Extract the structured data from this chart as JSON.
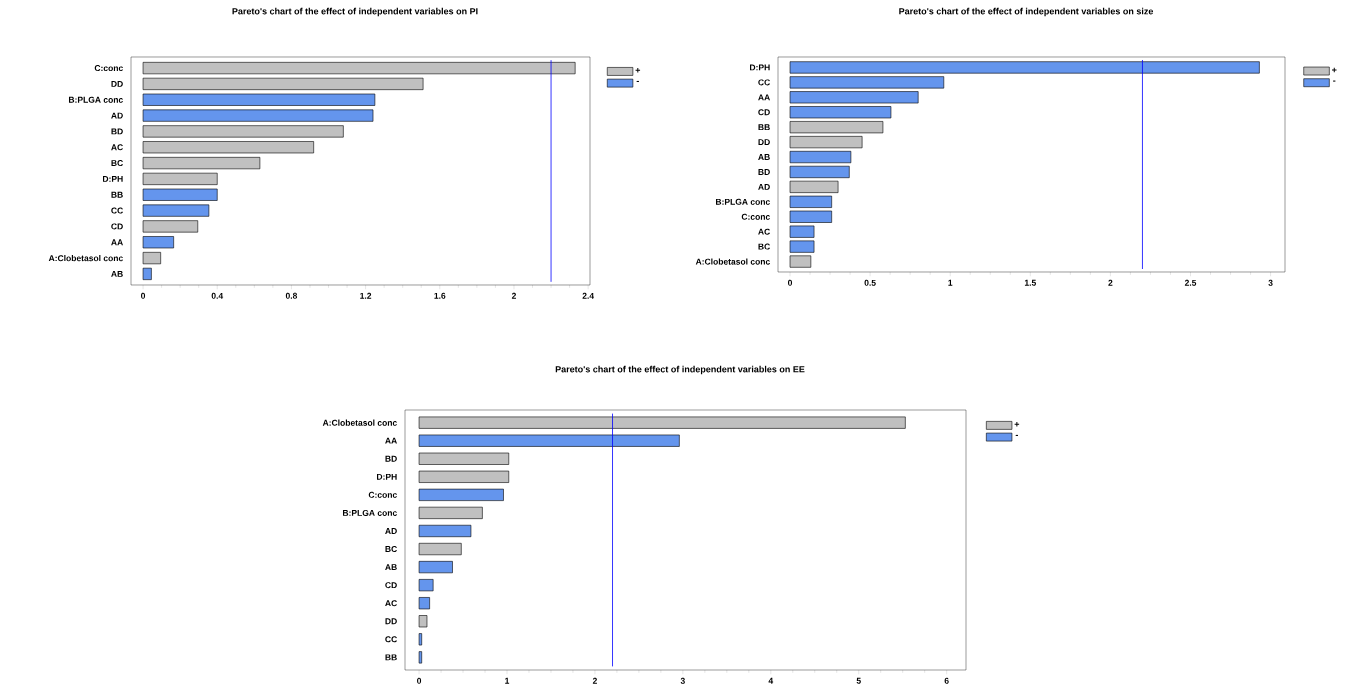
{
  "chart_data": [
    {
      "type": "bar",
      "orientation": "horizontal",
      "title": "Pareto's chart of the effect of independent variables on PI",
      "categories": [
        "C:conc",
        "DD",
        "B:PLGA conc",
        "AD",
        "BD",
        "AC",
        "BC",
        "D:PH",
        "BB",
        "CC",
        "CD",
        "AA",
        "A:Clobetasol conc",
        "AB"
      ],
      "series": [
        {
          "name": "+",
          "color": "#c0c0c0",
          "values": [
            2.33,
            1.51,
            null,
            null,
            1.08,
            0.92,
            0.63,
            0.4,
            null,
            null,
            0.295,
            null,
            0.095,
            null
          ]
        },
        {
          "name": "-",
          "color": "#6495ed",
          "values": [
            null,
            null,
            1.25,
            1.24,
            null,
            null,
            null,
            null,
            0.4,
            0.355,
            null,
            0.165,
            null,
            0.045
          ]
        }
      ],
      "xlim": [
        -0.065,
        2.41
      ],
      "xticks": [
        0,
        0.4,
        0.8,
        1.2,
        1.6,
        2,
        2.4
      ],
      "ref_lines": [
        {
          "axis": "x",
          "value": 2.2,
          "color": "#0000ff"
        }
      ],
      "legend": "right"
    },
    {
      "type": "bar",
      "orientation": "horizontal",
      "title": "Pareto's chart of the effect of independent variables on size",
      "categories": [
        "D:PH",
        "CC",
        "AA",
        "CD",
        "BB",
        "DD",
        "AB",
        "BD",
        "AD",
        "B:PLGA conc",
        "C:conc",
        "AC",
        "BC",
        "A:Clobetasol conc"
      ],
      "series": [
        {
          "name": "+",
          "color": "#c0c0c0",
          "values": [
            null,
            null,
            null,
            null,
            0.58,
            0.45,
            null,
            null,
            0.3,
            null,
            null,
            null,
            null,
            0.13
          ]
        },
        {
          "name": "-",
          "color": "#6495ed",
          "values": [
            2.93,
            0.96,
            0.8,
            0.63,
            null,
            null,
            0.38,
            0.37,
            null,
            0.26,
            0.26,
            0.15,
            0.15,
            null
          ]
        }
      ],
      "xlim": [
        -0.075,
        3.09
      ],
      "xticks": [
        0,
        0.5,
        1,
        1.5,
        2,
        2.5,
        3
      ],
      "ref_lines": [
        {
          "axis": "x",
          "value": 2.2,
          "color": "#0000ff"
        }
      ],
      "legend": "right"
    },
    {
      "type": "bar",
      "orientation": "horizontal",
      "title": "Pareto's chart of the effect of independent variables on EE",
      "categories": [
        "A:Clobetasol conc",
        "AA",
        "BD",
        "D:PH",
        "C:conc",
        "B:PLGA conc",
        "AD",
        "BC",
        "AB",
        "CD",
        "AC",
        "DD",
        "CC",
        "BB"
      ],
      "series": [
        {
          "name": "+",
          "color": "#c0c0c0",
          "values": [
            5.53,
            null,
            1.02,
            1.02,
            null,
            0.72,
            null,
            0.48,
            null,
            null,
            null,
            0.09,
            null,
            null
          ]
        },
        {
          "name": "-",
          "color": "#6495ed",
          "values": [
            null,
            2.96,
            null,
            null,
            0.96,
            null,
            0.59,
            null,
            0.38,
            0.16,
            0.12,
            null,
            0.03,
            0.03
          ]
        }
      ],
      "xlim": [
        -0.16,
        6.22
      ],
      "xticks": [
        0,
        1,
        2,
        3,
        4,
        5,
        6
      ],
      "ref_lines": [
        {
          "axis": "x",
          "value": 2.2,
          "color": "#0000ff"
        }
      ],
      "legend": "right"
    }
  ]
}
